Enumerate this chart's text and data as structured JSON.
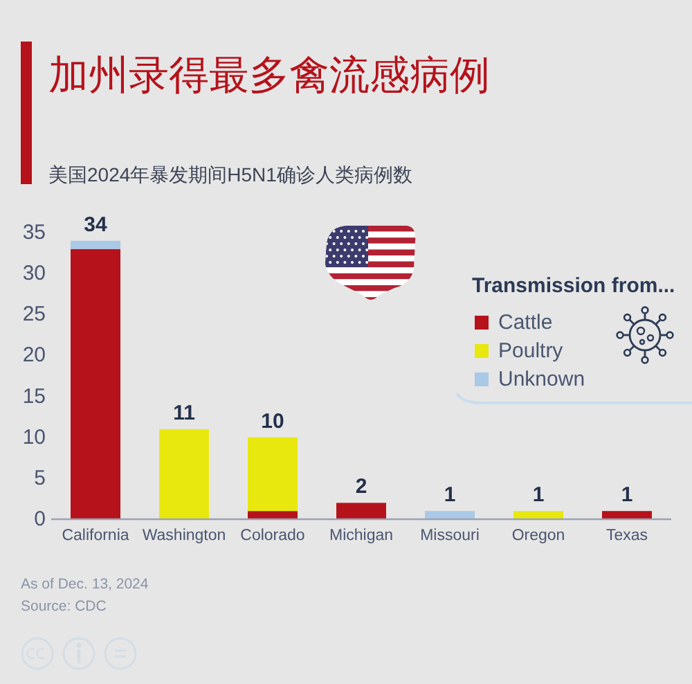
{
  "chart_data": {
    "type": "bar",
    "title": "加州录得最多禽流感病例",
    "subtitle": "美国2024年暴发期间H5N1确诊人类病例数",
    "categories": [
      "California",
      "Washington",
      "Colorado",
      "Michigan",
      "Missouri",
      "Oregon",
      "Texas"
    ],
    "series": [
      {
        "name": "Cattle",
        "color": "#b5121b",
        "values": [
          33,
          null,
          1,
          2,
          null,
          null,
          1
        ]
      },
      {
        "name": "Poultry",
        "color": "#e8e80f",
        "values": [
          null,
          11,
          9,
          null,
          null,
          1,
          null
        ]
      },
      {
        "name": "Unknown",
        "color": "#a9c9e6",
        "values": [
          1,
          null,
          null,
          null,
          1,
          null,
          null
        ]
      }
    ],
    "stacked": true,
    "ylim": [
      0,
      35
    ],
    "yticks": [
      0,
      5,
      10,
      15,
      20,
      25,
      30,
      35
    ],
    "grid": false,
    "legend": "top right",
    "legend_title": "Transmission from...",
    "totals": [
      "34",
      "11",
      "10",
      "2",
      "1",
      "1",
      "1"
    ],
    "annotations": [
      "As of Dec. 13, 2024",
      "Source: CDC"
    ]
  }
}
